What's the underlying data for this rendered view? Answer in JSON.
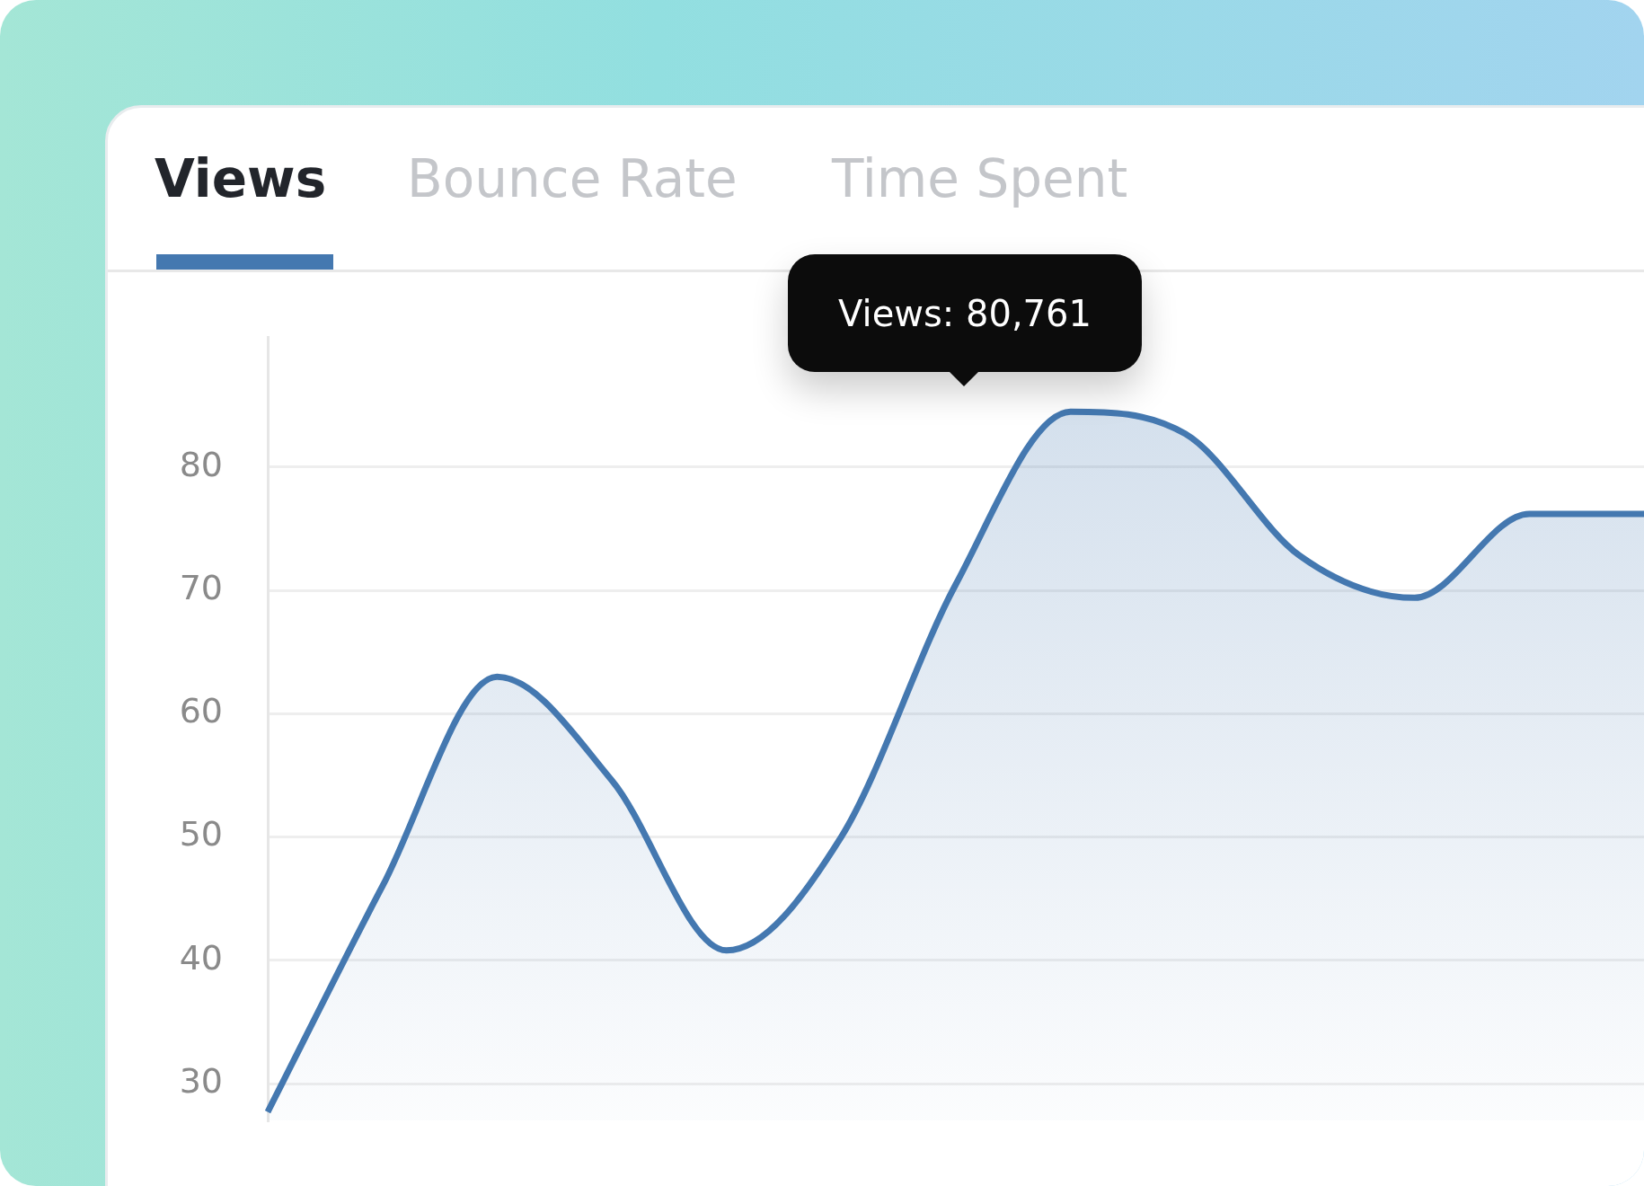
{
  "chart_data": {
    "type": "area",
    "title": "Views",
    "annotations": [
      "Bounce Rate",
      "Time Spent",
      "Views: 80,761"
    ],
    "categories": [
      null,
      null,
      null,
      null,
      null,
      null,
      null,
      null,
      null,
      null,
      null,
      null,
      null
    ],
    "series": [
      {
        "color": "#4478b0",
        "values": [
          27.7,
          46,
          63,
          54.6,
          40.8,
          50,
          70.5,
          84.5,
          82.7,
          72.8,
          69.4,
          76.2,
          76.2
        ]
      }
    ],
    "ylim": [
      27,
      90.5
    ],
    "yticks": [
      30,
      40,
      50,
      60,
      70,
      80
    ],
    "grid": "y",
    "tick_labels": "y"
  }
}
